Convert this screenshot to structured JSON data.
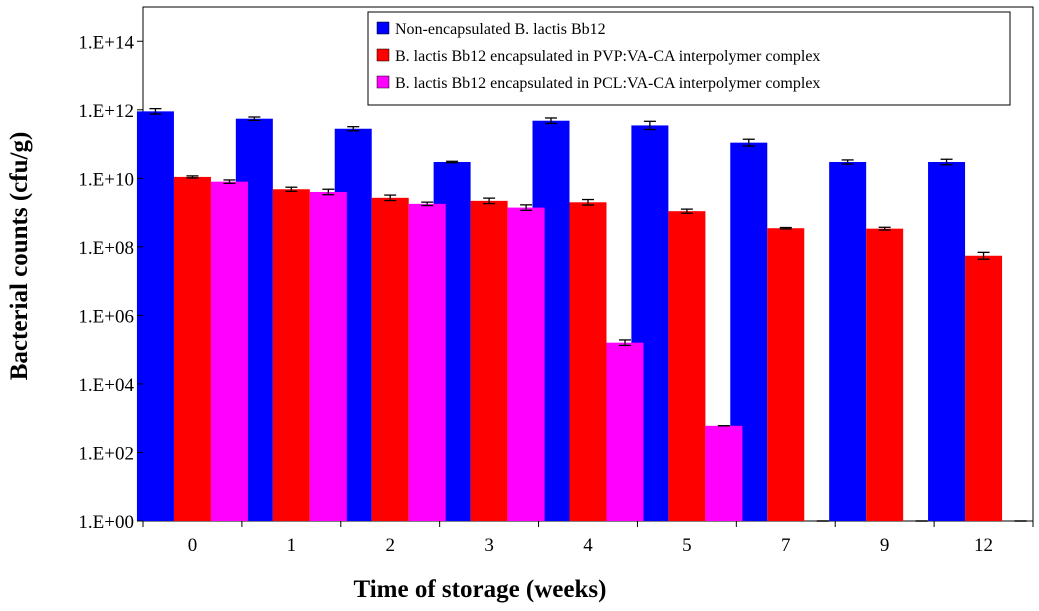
{
  "chart_data": {
    "type": "bar",
    "title": "",
    "xlabel": "Time of storage (weeks)",
    "ylabel": "Bacterial counts (cfu/g)",
    "y_scale": "log10",
    "ylim": [
      1,
      1000000000000000.0
    ],
    "y_ticks": [
      1,
      100,
      10000,
      1000000,
      100000000,
      10000000000,
      1000000000000,
      100000000000000
    ],
    "y_tick_labels": [
      "1.E+00",
      "1.E+02",
      "1.E+04",
      "1.E+06",
      "1.E+08",
      "1.E+10",
      "1.E+12",
      "1.E+14"
    ],
    "categories": [
      "0",
      "1",
      "2",
      "3",
      "4",
      "5",
      "7",
      "9",
      "12"
    ],
    "legend_position": "top-right",
    "grid": false,
    "error_bars": true,
    "series": [
      {
        "name": "Non-encapsulated B. lactis Bb12",
        "color": "#0000ff",
        "values": [
          900000000000.0,
          550000000000.0,
          280000000000.0,
          30000000000.0,
          480000000000.0,
          350000000000.0,
          110000000000.0,
          30000000000.0,
          30000000000.0
        ],
        "errors": [
          0.08,
          0.05,
          0.06,
          0.02,
          0.08,
          0.12,
          0.1,
          0.06,
          0.08
        ]
      },
      {
        "name": "B. lactis Bb12 encapsulated in PVP:VA-CA interpolymer complex",
        "color": "#ff0000",
        "values": [
          11000000000.0,
          4800000000.0,
          2700000000.0,
          2200000000.0,
          2000000000.0,
          1100000000.0,
          350000000.0,
          340000000.0,
          55000000.0
        ],
        "errors": [
          0.03,
          0.06,
          0.08,
          0.08,
          0.08,
          0.06,
          0.02,
          0.04,
          0.1
        ]
      },
      {
        "name": "B. lactis Bb12 encapsulated in PCL:VA-CA interpolymer complex",
        "color": "#ff00ff",
        "values": [
          8000000000.0,
          4000000000.0,
          1800000000.0,
          1400000000.0,
          160000.0,
          600,
          1,
          1,
          1
        ],
        "errors": [
          0.05,
          0.08,
          0.05,
          0.08,
          0.08,
          0.0,
          0.0,
          0.0,
          0.0
        ]
      }
    ]
  }
}
